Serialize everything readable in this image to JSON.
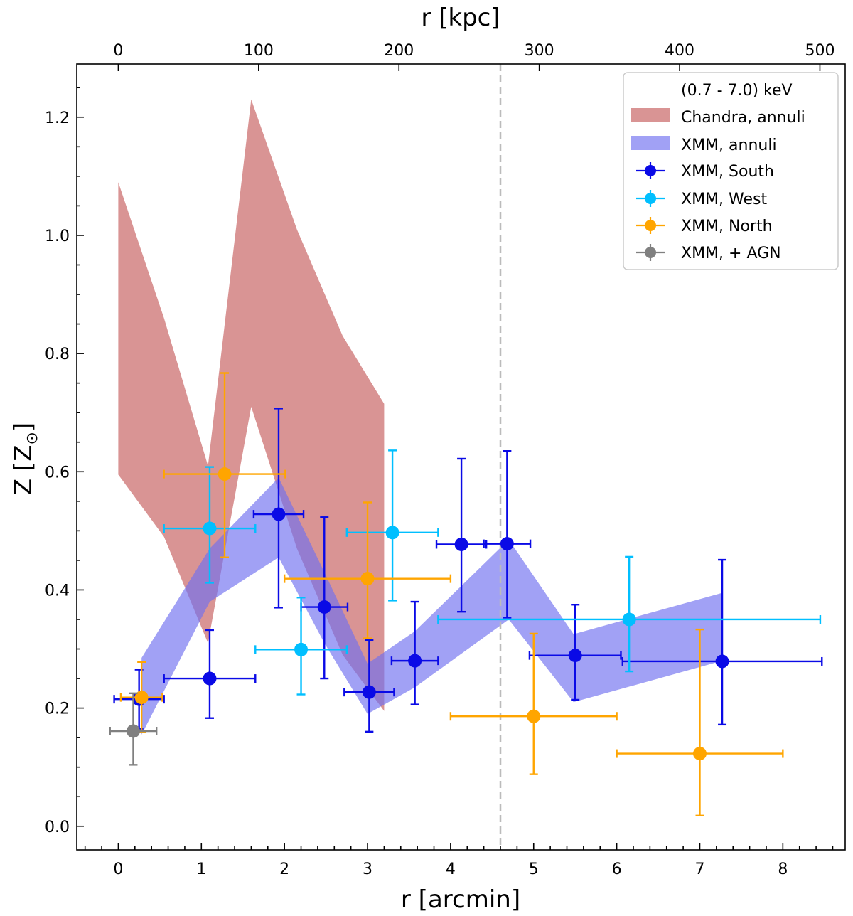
{
  "chart_data": {
    "type": "scatter",
    "title": "",
    "xlabel": "r [arcmin]",
    "ylabel": "Z [Z",
    "ylabel_symbol": "⊙",
    "ylabel_close": "]",
    "top_xlabel": "r [kpc]",
    "xlim": [
      -0.5,
      8.75
    ],
    "ylim": [
      -0.04,
      1.29
    ],
    "kpc_per_arcmin": 59.2,
    "x_ticks": [
      0,
      1,
      2,
      3,
      4,
      5,
      6,
      7,
      8
    ],
    "x_tick_labels": [
      "0",
      "1",
      "2",
      "3",
      "4",
      "5",
      "6",
      "7",
      "8"
    ],
    "y_ticks": [
      0.0,
      0.2,
      0.4,
      0.6,
      0.8,
      1.0,
      1.2
    ],
    "y_tick_labels": [
      "0.0",
      "0.2",
      "0.4",
      "0.6",
      "0.8",
      "1.0",
      "1.2"
    ],
    "top_ticks_kpc": [
      0,
      100,
      200,
      300,
      400,
      500
    ],
    "top_tick_labels": [
      "0",
      "100",
      "200",
      "300",
      "400",
      "500"
    ],
    "vline": {
      "x": 4.6,
      "color": "#bbbbbb",
      "style": "dashed"
    },
    "legend": {
      "position": "top-right",
      "title": "(0.7 - 7.0) keV",
      "entries": [
        "Chandra, annuli",
        "XMM, annuli",
        "XMM, South",
        "XMM, West",
        "XMM, North",
        "XMM, + AGN"
      ]
    },
    "bands": [
      {
        "name": "Chandra, annuli",
        "color": "#c45a5a",
        "opacity": 0.65,
        "upper": [
          [
            0.0,
            1.09
          ],
          [
            0.55,
            0.86
          ],
          [
            1.08,
            0.61
          ],
          [
            1.6,
            1.23
          ],
          [
            2.15,
            1.01
          ],
          [
            2.7,
            0.83
          ],
          [
            3.2,
            0.715
          ]
        ],
        "lower": [
          [
            0.0,
            0.595
          ],
          [
            0.55,
            0.49
          ],
          [
            1.08,
            0.31
          ],
          [
            1.6,
            0.71
          ],
          [
            2.15,
            0.47
          ],
          [
            2.7,
            0.29
          ],
          [
            3.2,
            0.195
          ]
        ]
      },
      {
        "name": "XMM, annuli",
        "color": "#6e6ef0",
        "opacity": 0.65,
        "upper": [
          [
            0.28,
            0.285
          ],
          [
            1.1,
            0.47
          ],
          [
            1.93,
            0.59
          ],
          [
            2.48,
            0.43
          ],
          [
            3.0,
            0.275
          ],
          [
            3.57,
            0.33
          ],
          [
            4.7,
            0.485
          ],
          [
            5.48,
            0.325
          ],
          [
            7.27,
            0.395
          ]
        ],
        "lower": [
          [
            0.28,
            0.155
          ],
          [
            1.1,
            0.38
          ],
          [
            1.93,
            0.455
          ],
          [
            2.48,
            0.31
          ],
          [
            3.0,
            0.19
          ],
          [
            3.57,
            0.235
          ],
          [
            4.7,
            0.35
          ],
          [
            5.48,
            0.21
          ],
          [
            7.27,
            0.28
          ]
        ]
      }
    ],
    "series": [
      {
        "name": "XMM, South",
        "color": "#0a0ae6",
        "points": [
          {
            "x": 0.25,
            "y": 0.215,
            "xerr": 0.3,
            "ylo": 0.165,
            "yhi": 0.265
          },
          {
            "x": 1.1,
            "y": 0.25,
            "xerr": 0.55,
            "ylo": 0.183,
            "yhi": 0.332
          },
          {
            "x": 1.93,
            "y": 0.528,
            "xerr": 0.3,
            "ylo": 0.37,
            "yhi": 0.707
          },
          {
            "x": 2.48,
            "y": 0.371,
            "xerr": 0.28,
            "ylo": 0.25,
            "yhi": 0.523
          },
          {
            "x": 3.02,
            "y": 0.227,
            "xerr": 0.3,
            "ylo": 0.16,
            "yhi": 0.315
          },
          {
            "x": 3.57,
            "y": 0.28,
            "xerr": 0.28,
            "ylo": 0.206,
            "yhi": 0.38
          },
          {
            "x": 4.13,
            "y": 0.477,
            "xerr": 0.3,
            "ylo": 0.363,
            "yhi": 0.622
          },
          {
            "x": 4.68,
            "y": 0.478,
            "xerr": 0.28,
            "ylo": 0.353,
            "yhi": 0.635
          },
          {
            "x": 5.5,
            "y": 0.289,
            "xerr": 0.55,
            "ylo": 0.214,
            "yhi": 0.375
          },
          {
            "x": 7.27,
            "y": 0.279,
            "xerr": 1.2,
            "ylo": 0.172,
            "yhi": 0.451
          }
        ]
      },
      {
        "name": "XMM, West",
        "color": "#00bfff",
        "points": [
          {
            "x": 1.1,
            "y": 0.504,
            "xerr": 0.55,
            "ylo": 0.412,
            "yhi": 0.608
          },
          {
            "x": 2.2,
            "y": 0.299,
            "xerr": 0.55,
            "ylo": 0.223,
            "yhi": 0.387
          },
          {
            "x": 3.3,
            "y": 0.497,
            "xerr": 0.55,
            "ylo": 0.382,
            "yhi": 0.636
          },
          {
            "x": 6.15,
            "y": 0.35,
            "xerr": 2.3,
            "ylo": 0.262,
            "yhi": 0.456
          }
        ]
      },
      {
        "name": "XMM, North",
        "color": "#ffa500",
        "points": [
          {
            "x": 0.28,
            "y": 0.218,
            "xerr": 0.25,
            "ylo": 0.16,
            "yhi": 0.278
          },
          {
            "x": 1.28,
            "y": 0.596,
            "xerr": 0.73,
            "ylo": 0.455,
            "yhi": 0.767
          },
          {
            "x": 3.0,
            "y": 0.419,
            "xerr": 1.0,
            "ylo": 0.318,
            "yhi": 0.548
          },
          {
            "x": 5.0,
            "y": 0.186,
            "xerr": 1.0,
            "ylo": 0.088,
            "yhi": 0.326
          },
          {
            "x": 7.0,
            "y": 0.123,
            "xerr": 1.0,
            "ylo": 0.018,
            "yhi": 0.333
          }
        ]
      },
      {
        "name": "XMM, + AGN",
        "color": "#808080",
        "points": [
          {
            "x": 0.18,
            "y": 0.161,
            "xerr": 0.28,
            "ylo": 0.104,
            "yhi": 0.225
          }
        ]
      }
    ]
  }
}
